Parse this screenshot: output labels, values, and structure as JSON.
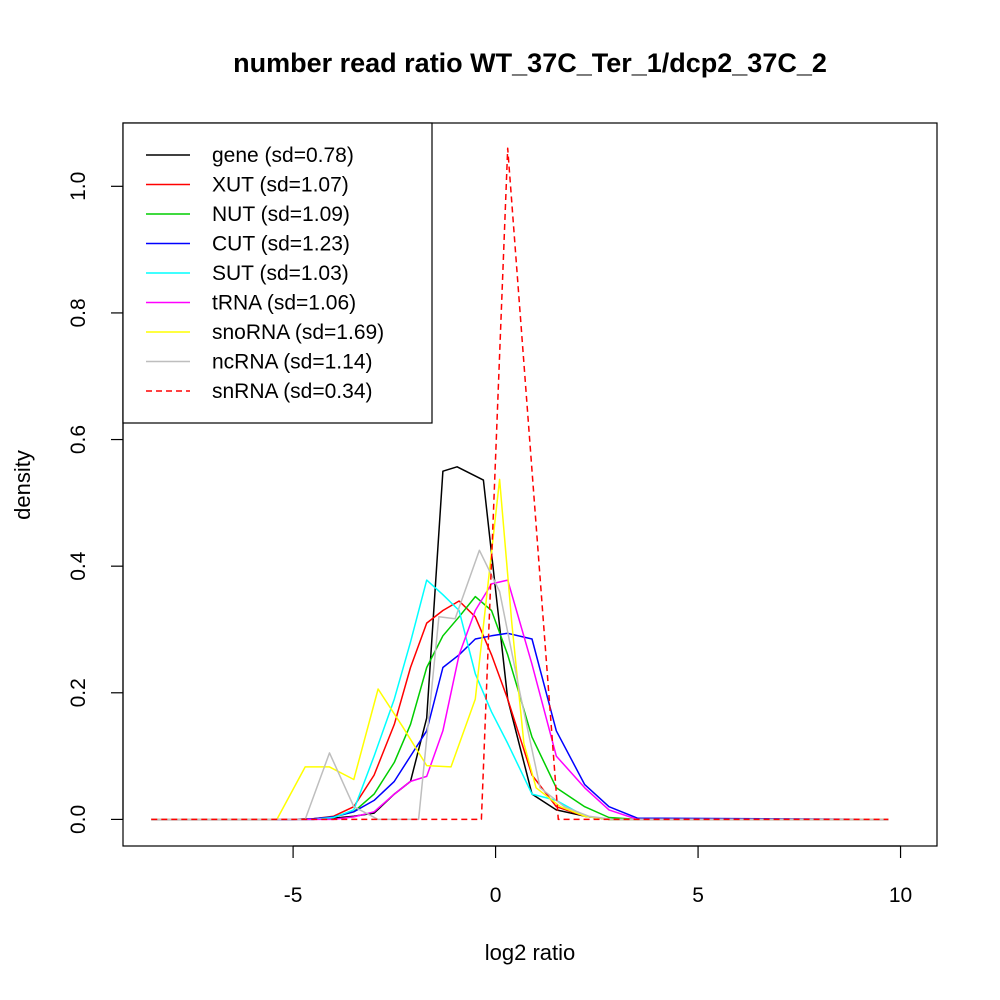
{
  "chart_data": {
    "type": "line",
    "title": "number read ratio WT_37C_Ter_1/dcp2_37C_2",
    "xlabel": "log2 ratio",
    "ylabel": "density",
    "xlim": [
      -9.2,
      10.9
    ],
    "ylim": [
      -0.042,
      1.1
    ],
    "x_ticks": [
      -5,
      0,
      5,
      10
    ],
    "x_tick_labels": [
      "-5",
      "0",
      "5",
      "10"
    ],
    "y_ticks": [
      0,
      0.2,
      0.4,
      0.6,
      0.8,
      1.0
    ],
    "y_tick_labels": [
      "0.0",
      "0.2",
      "0.4",
      "0.6",
      "0.8",
      "1.0"
    ],
    "grid": false,
    "legend_position": "top-left",
    "series": [
      {
        "name": "gene (sd=0.78)",
        "color": "#000000",
        "dash": false,
        "x": [
          -8.5,
          -5.0,
          -4.5,
          -4.0,
          -3.5,
          -3.0,
          -2.5,
          -2.1,
          -1.7,
          -1.3,
          -0.95,
          -0.3,
          0.3,
          0.9,
          1.5,
          2.2,
          2.8,
          3.5,
          9.7
        ],
        "y": [
          0,
          0,
          0,
          0.002,
          0.005,
          0.01,
          0.04,
          0.06,
          0.16,
          0.55,
          0.557,
          0.536,
          0.19,
          0.04,
          0.015,
          0.005,
          0,
          0,
          0
        ]
      },
      {
        "name": "XUT (sd=1.07)",
        "color": "#ff0000",
        "dash": false,
        "x": [
          -8.5,
          -5.0,
          -4.5,
          -4.0,
          -3.5,
          -3.0,
          -2.5,
          -2.1,
          -1.7,
          -1.3,
          -0.9,
          -0.5,
          -0.1,
          0.3,
          0.9,
          1.5,
          2.2,
          2.8,
          3.5,
          9.7
        ],
        "y": [
          0,
          0,
          0.001,
          0.005,
          0.02,
          0.07,
          0.15,
          0.24,
          0.31,
          0.33,
          0.345,
          0.32,
          0.26,
          0.19,
          0.07,
          0.02,
          0.005,
          0,
          0,
          0
        ]
      },
      {
        "name": "NUT (sd=1.09)",
        "color": "#00cd00",
        "dash": false,
        "x": [
          -8.5,
          -5.0,
          -4.5,
          -4.0,
          -3.5,
          -3.0,
          -2.5,
          -2.1,
          -1.7,
          -1.3,
          -0.9,
          -0.5,
          -0.1,
          0.3,
          0.9,
          1.5,
          2.2,
          2.8,
          3.5,
          9.7
        ],
        "y": [
          0,
          0,
          0.001,
          0.004,
          0.012,
          0.04,
          0.09,
          0.15,
          0.24,
          0.29,
          0.32,
          0.352,
          0.33,
          0.26,
          0.13,
          0.05,
          0.02,
          0.003,
          0,
          0
        ]
      },
      {
        "name": "CUT (sd=1.23)",
        "color": "#0000ff",
        "dash": false,
        "x": [
          -8.5,
          -5.0,
          -4.5,
          -4.0,
          -3.5,
          -3.0,
          -2.5,
          -2.1,
          -1.7,
          -1.3,
          -0.9,
          -0.5,
          -0.1,
          0.3,
          0.9,
          1.5,
          2.2,
          2.8,
          3.5,
          9.7
        ],
        "y": [
          0,
          0,
          0.001,
          0.004,
          0.012,
          0.03,
          0.06,
          0.1,
          0.14,
          0.24,
          0.26,
          0.285,
          0.29,
          0.294,
          0.285,
          0.14,
          0.055,
          0.02,
          0.002,
          0
        ]
      },
      {
        "name": "SUT (sd=1.03)",
        "color": "#00ffff",
        "dash": false,
        "x": [
          -8.5,
          -5.0,
          -4.5,
          -4.0,
          -3.5,
          -3.0,
          -2.5,
          -2.1,
          -1.7,
          -1.3,
          -0.9,
          -0.5,
          -0.1,
          0.3,
          0.9,
          1.5,
          2.2,
          2.8,
          3.5,
          9.7
        ],
        "y": [
          0,
          0,
          0,
          0.003,
          0.015,
          0.1,
          0.19,
          0.28,
          0.378,
          0.355,
          0.33,
          0.23,
          0.17,
          0.12,
          0.04,
          0.03,
          0.005,
          0,
          0,
          0
        ]
      },
      {
        "name": "tRNA (sd=1.06)",
        "color": "#ff00ff",
        "dash": false,
        "x": [
          -8.5,
          -5.0,
          -4.5,
          -4.0,
          -3.5,
          -3.0,
          -2.5,
          -2.1,
          -1.7,
          -1.3,
          -0.9,
          -0.5,
          -0.1,
          0.3,
          0.9,
          1.5,
          2.2,
          2.8,
          3.5,
          9.7
        ],
        "y": [
          0,
          0,
          0,
          0,
          0.004,
          0.012,
          0.04,
          0.06,
          0.068,
          0.14,
          0.26,
          0.33,
          0.372,
          0.378,
          0.245,
          0.1,
          0.05,
          0.015,
          0,
          0
        ]
      },
      {
        "name": "snoRNA (sd=1.69)",
        "color": "#ffff00",
        "dash": false,
        "x": [
          -8.5,
          -5.4,
          -4.7,
          -4.1,
          -3.5,
          -2.9,
          -2.3,
          -1.7,
          -1.1,
          -0.5,
          0.1,
          0.4,
          0.7,
          1.0,
          1.6,
          2.2,
          2.8,
          9.7
        ],
        "y": [
          0,
          0,
          0.083,
          0.083,
          0.063,
          0.206,
          0.147,
          0.085,
          0.083,
          0.19,
          0.537,
          0.31,
          0.12,
          0.05,
          0.02,
          0.005,
          0,
          0
        ]
      },
      {
        "name": "ncRNA (sd=1.14)",
        "color": "#bebebe",
        "dash": false,
        "x": [
          -8.5,
          -4.7,
          -4.1,
          -3.5,
          -2.9,
          -2.3,
          -1.9,
          -1.4,
          -1.0,
          -0.4,
          0.1,
          0.6,
          1.1,
          1.7,
          2.3,
          2.9,
          9.7
        ],
        "y": [
          0,
          0,
          0.105,
          0.02,
          0,
          0,
          0,
          0.32,
          0.317,
          0.425,
          0.36,
          0.2,
          0.05,
          0.02,
          0.005,
          0,
          0
        ]
      },
      {
        "name": "snRNA (sd=0.34)",
        "color": "#ff0000",
        "dash": true,
        "x": [
          -8.5,
          -0.35,
          0.3,
          1.55,
          9.7
        ],
        "y": [
          0,
          0,
          1.06,
          0,
          0
        ]
      }
    ]
  }
}
